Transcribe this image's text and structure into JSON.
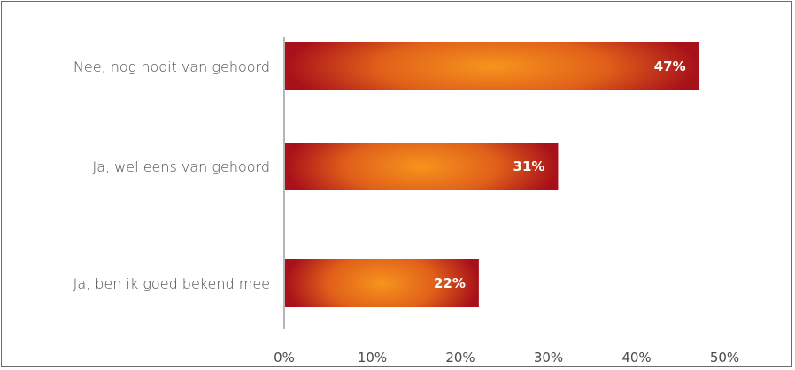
{
  "chart_data": {
    "type": "bar",
    "orientation": "horizontal",
    "categories": [
      "Nee, nog nooit van gehoord",
      "Ja, wel eens van gehoord",
      "Ja, ben ik goed bekend mee"
    ],
    "values": [
      47,
      31,
      22
    ],
    "data_labels": [
      "47%",
      "31%",
      "22%"
    ],
    "x_tick_labels": [
      "0%",
      "10%",
      "20%",
      "30%",
      "40%",
      "50%"
    ],
    "xlim": [
      0,
      50
    ],
    "grid": false,
    "legend": "none",
    "colors": {
      "bar_edge": "#a8101a",
      "bar_center": "#f7941d",
      "axis": "#6b6b6b",
      "text": "#4a4a4a"
    }
  }
}
